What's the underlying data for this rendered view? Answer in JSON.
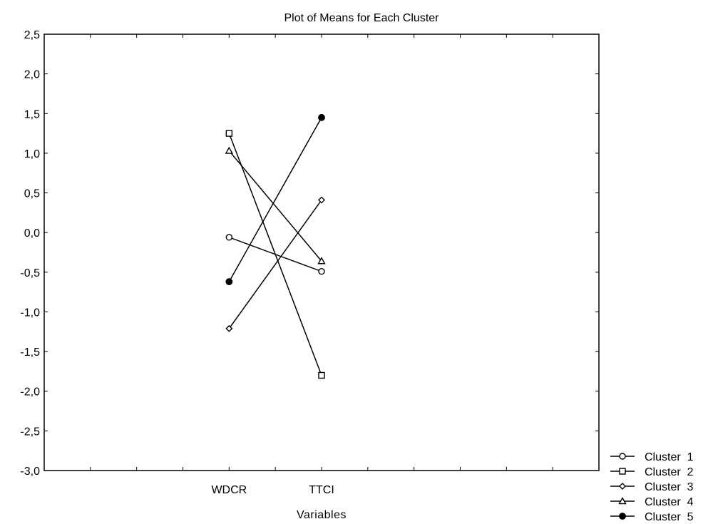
{
  "chart_data": {
    "type": "line",
    "title": "Plot of Means for Each Cluster",
    "xlabel": "Variables",
    "ylabel": "",
    "categories": [
      "WDCR",
      "TTCI"
    ],
    "ylim": [
      -3.0,
      2.5
    ],
    "ytick_step": 0.5,
    "ytick_labels": [
      "2,5",
      "2,0",
      "1,5",
      "1,0",
      "0,5",
      "0,0",
      "-0,5",
      "-1,0",
      "-1,5",
      "-2,0",
      "-2,5",
      "-3,0"
    ],
    "grid": false,
    "legend_position": "bottom-right, outside plot",
    "series": [
      {
        "name": "Cluster  1",
        "marker": "open-circle",
        "values": [
          -0.06,
          -0.49
        ]
      },
      {
        "name": "Cluster  2",
        "marker": "open-square",
        "values": [
          1.25,
          -1.8
        ]
      },
      {
        "name": "Cluster  3",
        "marker": "open-diamond",
        "values": [
          -1.21,
          0.41
        ]
      },
      {
        "name": "Cluster  4",
        "marker": "open-triangle",
        "values": [
          1.03,
          -0.36
        ]
      },
      {
        "name": "Cluster  5",
        "marker": "filled-circle",
        "values": [
          -0.62,
          1.45
        ]
      }
    ],
    "line_color": "#000000"
  }
}
